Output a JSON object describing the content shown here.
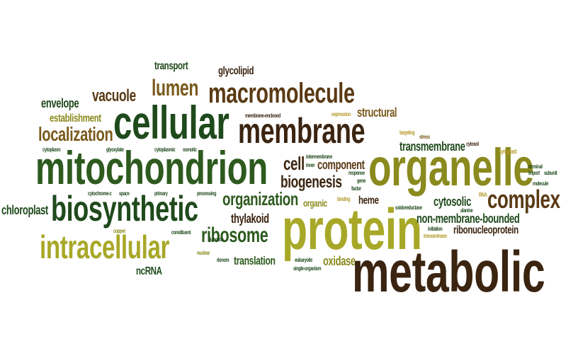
{
  "palette": {
    "dark_brown": "#3b2410",
    "brown": "#5a3a14",
    "mid_brown": "#7a5a1c",
    "dark_green": "#1f4a1c",
    "green": "#2d5a1e",
    "olive": "#8a8a1e",
    "yellow_olive": "#a8a828",
    "gold": "#b59a2a"
  },
  "words": {
    "metabolic": "metabolic",
    "protein": "protein",
    "mitochondrion": "mitochondrion",
    "organelle": "organelle",
    "cellular": "cellular",
    "membrane": "membrane",
    "biosynthetic": "biosynthetic",
    "intracellular": "intracellular",
    "macromolecule": "macromolecule",
    "complex": "complex",
    "ribosome": "ribosome",
    "localization": "localization",
    "lumen": "lumen",
    "vacuole": "vacuole",
    "organization": "organization",
    "biogenesis": "biogenesis",
    "cell": "cell",
    "component": "component",
    "transmembrane": "transmembrane",
    "structural": "structural",
    "cytosolic": "cytosolic",
    "non_membrane_bounded": "non-membrane-bounded",
    "ribonucleoprotein": "ribonucleoprotein",
    "chloroplast": "chloroplast",
    "envelope": "envelope",
    "establishment": "establishment",
    "transport": "transport",
    "glycolipid": "glycolipid",
    "thylakoid": "thylakoid",
    "translation": "translation",
    "oxidase": "oxidase",
    "heme": "heme",
    "organic": "organic",
    "ncRNA": "ncRNA",
    "membrane_enclosed": "membrane-enclosed",
    "expression": "expression",
    "targeting": "targeting",
    "stress": "stress",
    "cytosol": "cytosol",
    "symplast": "symplast",
    "terminal": "terminal",
    "import": "import",
    "subunit": "subunit",
    "molecule": "molecule",
    "cytoplasm": "cytoplasm",
    "glyoxylate": "glyoxylate",
    "cytoplasmic": "cytoplasmic",
    "osmotic": "osmotic",
    "intermembrane": "intermembrane",
    "inner": "inner",
    "response": "response",
    "gene": "gene",
    "factor": "factor",
    "cytochrome_c": "cytochrome-c",
    "space": "space",
    "primary": "primary",
    "processing": "processing",
    "binding": "binding",
    "RNA": "RNA",
    "alanine": "alanine",
    "oxidoreductase": "oxidoreductase",
    "initiation": "initiation",
    "transaminase": "transaminase",
    "copper": "copper",
    "constituent": "constituent",
    "junction": "junction",
    "nuclear": "nuclear",
    "donors": "donors",
    "eukaryotic": "eukaryotic",
    "single_organism": "single-organism"
  }
}
